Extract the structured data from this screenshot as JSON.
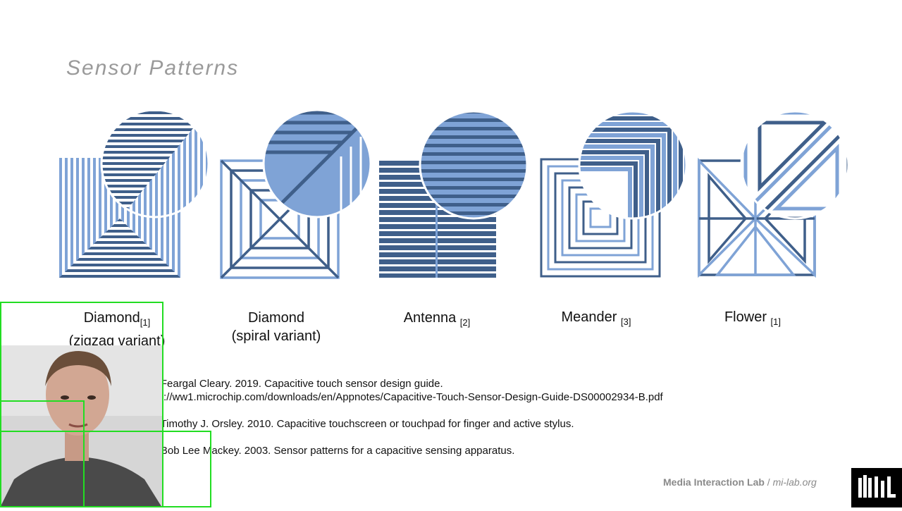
{
  "title": "Sensor Patterns",
  "patterns": [
    {
      "name": "Diamond",
      "ref": "[1]",
      "variant": "(zigzag variant)"
    },
    {
      "name": "Diamond",
      "ref": "",
      "variant": "(spiral variant)"
    },
    {
      "name": "Antenna",
      "ref": "[2]",
      "variant": ""
    },
    {
      "name": "Meander",
      "ref": "[3]",
      "variant": ""
    },
    {
      "name": "Flower",
      "ref": "[1]",
      "variant": ""
    }
  ],
  "references": [
    {
      "line1": "[1] Feargal Cleary. 2019. Capacitive touch sensor design guide.",
      "line2": "http://ww1.microchip.com/downloads/en/Appnotes/Capacitive-Touch-Sensor-Design-Guide-DS00002934-B.pdf"
    },
    {
      "line1": "[2] Timothy J. Orsley. 2010. Capacitive touchscreen or touchpad for finger and active stylus.",
      "line2": ""
    },
    {
      "line1": "[3] Bob Lee Mackey. 2003. Sensor patterns for a capacitive sensing apparatus.",
      "line2": ""
    }
  ],
  "footer": {
    "lab": "Media Interaction Lab",
    "separator": " / ",
    "site": "mi-lab.org"
  },
  "logo": {
    "text": "MIL",
    "icon": "mil-logo-icon"
  },
  "colors": {
    "dark": "#3f5f8a",
    "light": "#7fa3d6",
    "title": "#9a9a9a",
    "overlay": "#22dd22"
  }
}
